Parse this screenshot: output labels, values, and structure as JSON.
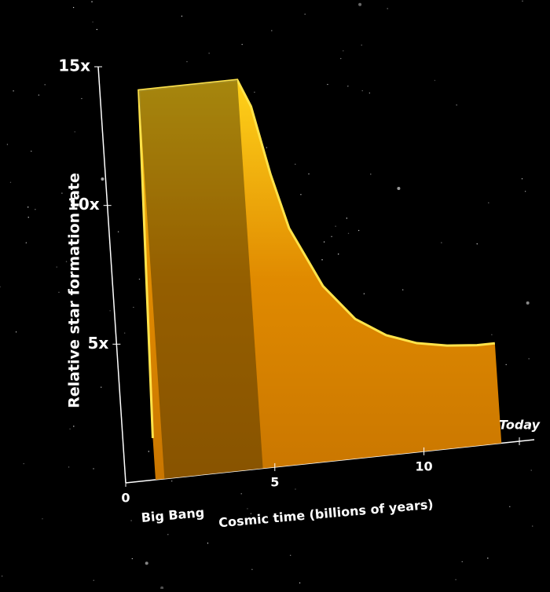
{
  "chart_data": {
    "type": "area",
    "y_label": "Relative star formation rate",
    "x_label": "Cosmic time (billions of years)",
    "annotation": "Big Bang",
    "x": [
      1.0,
      1.3,
      1.6,
      2,
      3,
      4,
      4.6,
      5,
      5.5,
      6,
      7,
      8,
      9,
      10,
      11,
      12,
      12.6
    ],
    "values": [
      1.5,
      14,
      14,
      14,
      14,
      14,
      14,
      13,
      10.5,
      8.5,
      6.3,
      5.0,
      4.3,
      3.9,
      3.7,
      3.6,
      3.6
    ],
    "color": "#f5b400",
    "xlim": [
      0,
      13.7
    ],
    "ylim": [
      0,
      15
    ],
    "xticks": [
      0,
      5,
      10,
      {
        "value": 13.2,
        "label": "Today"
      }
    ],
    "yticks": [
      {
        "value": 5,
        "label": "5x"
      },
      {
        "value": 10,
        "label": "10x"
      },
      {
        "value": 15,
        "label": "15x"
      }
    ]
  }
}
